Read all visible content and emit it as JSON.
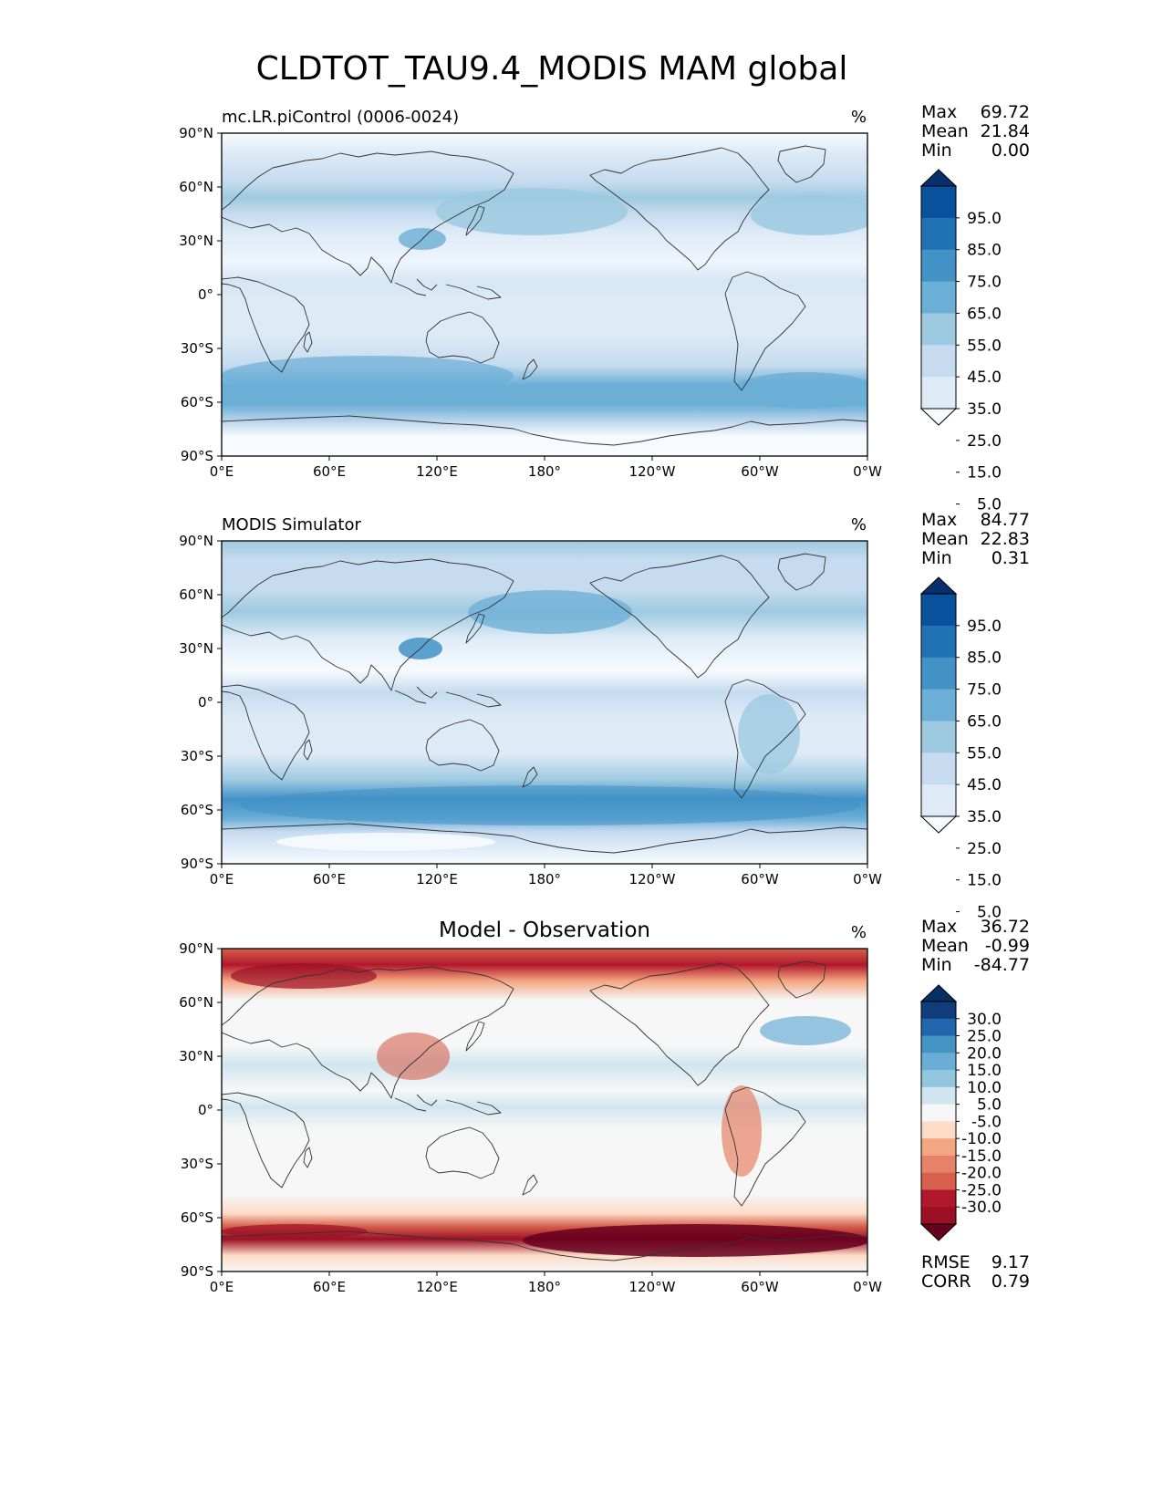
{
  "title": "CLDTOT_TAU9.4_MODIS MAM global",
  "colors": {
    "blues": [
      "#f7fbff",
      "#deebf7",
      "#c6dbef",
      "#9ecae1",
      "#6baed6",
      "#4292c6",
      "#2171b5",
      "#08519c",
      "#08306b"
    ],
    "diff": [
      "#67001f",
      "#9b1025",
      "#b2182b",
      "#d6604d",
      "#e58267",
      "#f4a582",
      "#fddbc7",
      "#f7f7f7",
      "#d1e5f0",
      "#92c5de",
      "#6aaed6",
      "#4393c3",
      "#2166ac",
      "#0e3d7a",
      "#053061"
    ]
  },
  "chart_data": [
    {
      "type": "heatmap",
      "panel": "model",
      "title": "mc.LR.piControl (0006-0024)",
      "units": "%",
      "x_ticks": [
        "0°E",
        "60°E",
        "120°E",
        "180°",
        "120°W",
        "60°W",
        "0°W"
      ],
      "y_ticks": [
        "90°N",
        "60°N",
        "30°N",
        "0°",
        "30°S",
        "60°S",
        "90°S"
      ],
      "stats": {
        "labels": [
          "Max",
          "Mean",
          "Min"
        ],
        "values": [
          "69.72",
          "21.84",
          "0.00"
        ]
      },
      "colorbar": {
        "levels": [
          "95.0",
          "85.0",
          "75.0",
          "65.0",
          "55.0",
          "45.0",
          "35.0",
          "25.0",
          "15.0",
          "5.0"
        ],
        "palette": "blues"
      }
    },
    {
      "type": "heatmap",
      "panel": "observation",
      "title": "MODIS Simulator",
      "units": "%",
      "x_ticks": [
        "0°E",
        "60°E",
        "120°E",
        "180°",
        "120°W",
        "60°W",
        "0°W"
      ],
      "y_ticks": [
        "90°N",
        "60°N",
        "30°N",
        "0°",
        "30°S",
        "60°S",
        "90°S"
      ],
      "stats": {
        "labels": [
          "Max",
          "Mean",
          "Min"
        ],
        "values": [
          "84.77",
          "22.83",
          "0.31"
        ]
      },
      "colorbar": {
        "levels": [
          "95.0",
          "85.0",
          "75.0",
          "65.0",
          "55.0",
          "45.0",
          "35.0",
          "25.0",
          "15.0",
          "5.0"
        ],
        "palette": "blues"
      }
    },
    {
      "type": "heatmap",
      "panel": "difference",
      "title": "Model - Observation",
      "units": "%",
      "x_ticks": [
        "0°E",
        "60°E",
        "120°E",
        "180°",
        "120°W",
        "60°W",
        "0°W"
      ],
      "y_ticks": [
        "90°N",
        "60°N",
        "30°N",
        "0°",
        "30°S",
        "60°S",
        "90°S"
      ],
      "stats": {
        "labels": [
          "Max",
          "Mean",
          "Min"
        ],
        "values": [
          "36.72",
          "-0.99",
          "-84.77"
        ]
      },
      "colorbar": {
        "levels": [
          "30.0",
          "25.0",
          "20.0",
          "15.0",
          "10.0",
          "5.0",
          "-5.0",
          "-10.0",
          "-15.0",
          "-20.0",
          "-25.0",
          "-30.0"
        ],
        "palette": "diff"
      },
      "metrics": {
        "labels": [
          "RMSE",
          "CORR"
        ],
        "values": [
          "9.17",
          "0.79"
        ]
      }
    }
  ]
}
